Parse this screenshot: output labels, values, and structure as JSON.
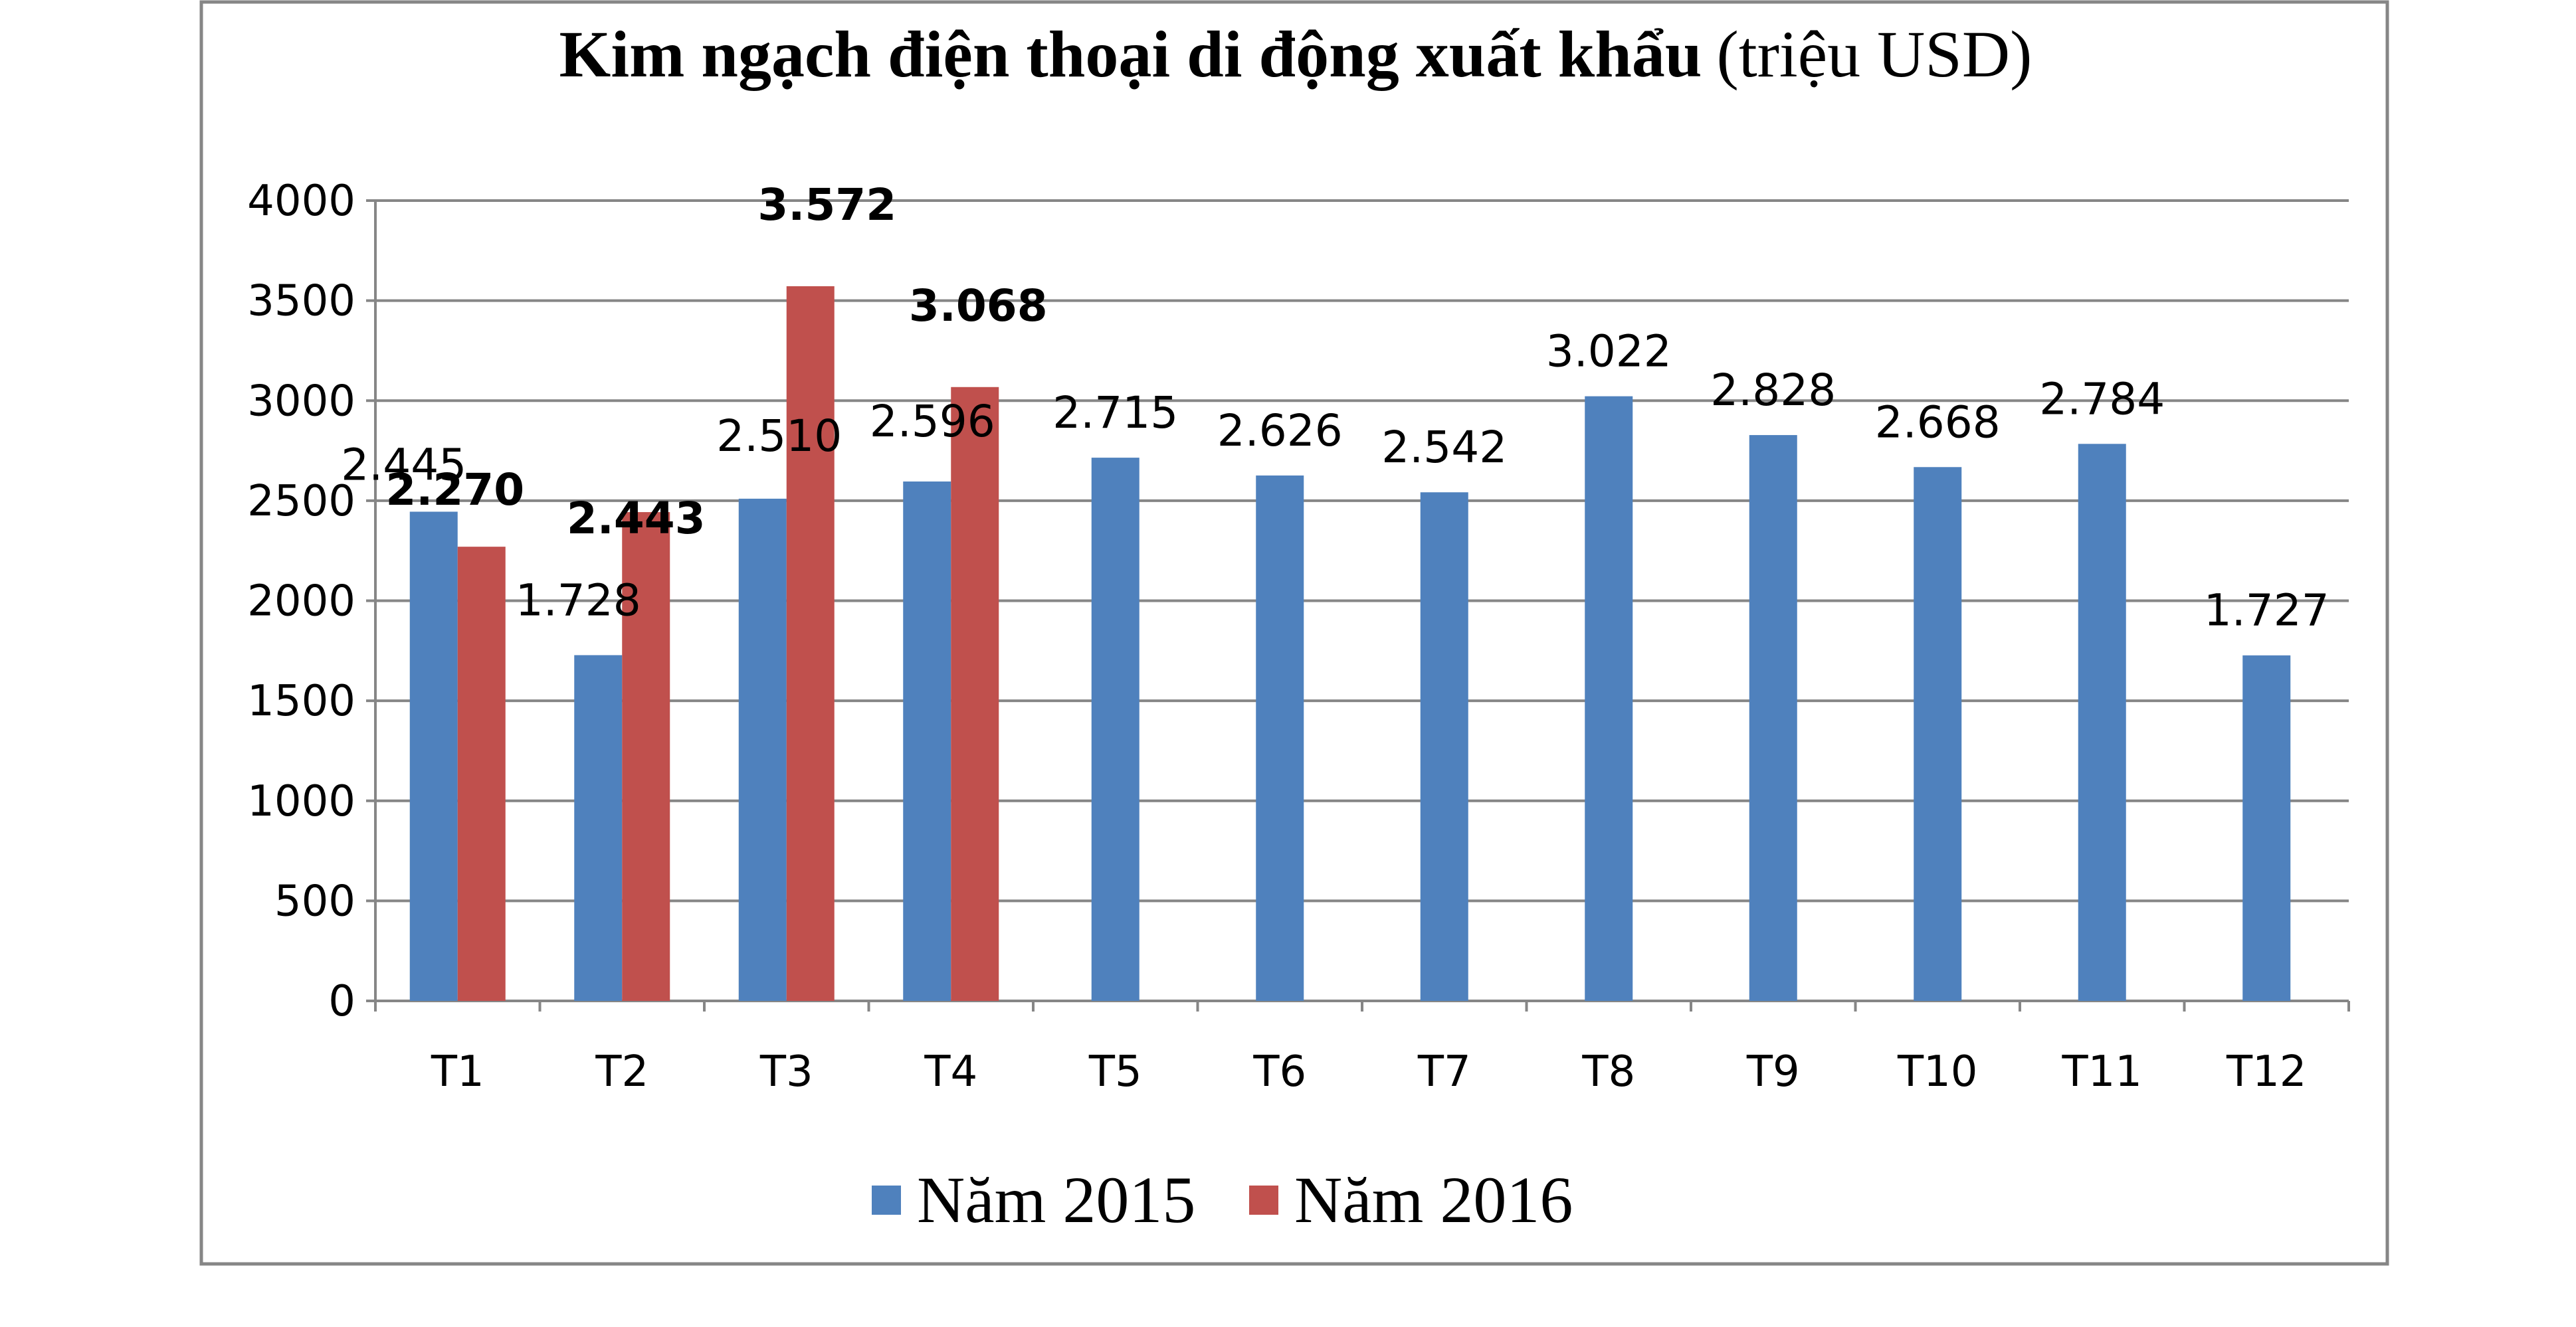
{
  "chart_data": {
    "type": "bar",
    "title": "Kim ngạch điện thoại di động xuất khẩu",
    "subtitle": "(triệu USD)",
    "xlabel": "",
    "ylabel": "",
    "ylim": [
      0,
      4000
    ],
    "yticks": [
      0,
      500,
      1000,
      1500,
      2000,
      2500,
      3000,
      3500,
      4000
    ],
    "grid": true,
    "legend_position": "bottom",
    "categories": [
      "T1",
      "T2",
      "T3",
      "T4",
      "T5",
      "T6",
      "T7",
      "T8",
      "T9",
      "T10",
      "T11",
      "T12"
    ],
    "series": [
      {
        "name": "Năm 2015",
        "color": "#4f81bd",
        "values": [
          2445,
          1728,
          2510,
          2596,
          2715,
          2626,
          2542,
          3022,
          2828,
          2668,
          2784,
          1727
        ],
        "labels": [
          "2.445",
          "1.728",
          "2.510",
          "2.596",
          "2.715",
          "2.626",
          "2.542",
          "3.022",
          "2.828",
          "2.668",
          "2.784",
          "1.727"
        ]
      },
      {
        "name": "Năm 2016",
        "color": "#c0504d",
        "values": [
          2270,
          2443,
          3572,
          3068,
          null,
          null,
          null,
          null,
          null,
          null,
          null,
          null
        ],
        "labels": [
          "2.270",
          "2.443",
          "3.572",
          "3.068",
          null,
          null,
          null,
          null,
          null,
          null,
          null,
          null
        ]
      }
    ]
  }
}
